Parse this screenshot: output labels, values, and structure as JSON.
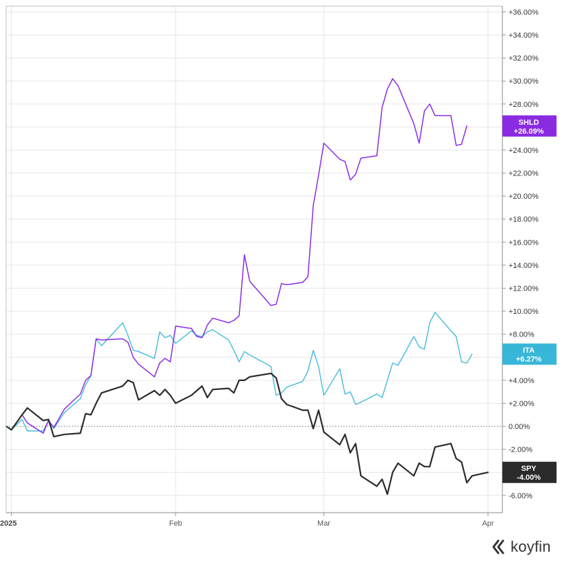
{
  "brand": "koyfin",
  "chart_data": {
    "type": "line",
    "ylim": [
      -7.5,
      36.5
    ],
    "y_ticks": [
      36,
      34,
      32,
      30,
      28,
      26,
      24,
      22,
      20,
      18,
      16,
      14,
      12,
      10,
      8,
      6,
      4,
      2,
      0,
      -2,
      -4,
      -6
    ],
    "y_tick_labels": [
      "+36.00%",
      "+34.00%",
      "+32.00%",
      "+30.00%",
      "+28.00%",
      "+26.00%",
      "+24.00%",
      "+22.00%",
      "+20.00%",
      "+18.00%",
      "+16.00%",
      "+14.00%",
      "+12.00%",
      "+10.00%",
      "+8.00%",
      "+6.00%",
      "+4.00%",
      "+2.00%",
      "0.00%",
      "-2.00%",
      "-4.00%",
      "-6.00%"
    ],
    "x_ticks": [
      {
        "date": "2024-12-31",
        "label": "2025",
        "bold": true
      },
      {
        "date": "2025-01-31",
        "label": "Feb",
        "bold": false
      },
      {
        "date": "2025-02-28",
        "label": "Mar",
        "bold": false
      },
      {
        "date": "2025-03-31",
        "label": "Apr",
        "bold": false
      }
    ],
    "zero_line": true,
    "grid": true,
    "series": [
      {
        "name": "SHLD",
        "color": "#8a2be2",
        "end_label": "+26.09%",
        "line_width": 1.5,
        "points": [
          [
            "2024-12-30",
            0.0
          ],
          [
            "2024-12-31",
            -0.3
          ],
          [
            "2025-01-02",
            1.0
          ],
          [
            "2025-01-03",
            0.3
          ],
          [
            "2025-01-06",
            -0.6
          ],
          [
            "2025-01-07",
            0.5
          ],
          [
            "2025-01-08",
            -0.1
          ],
          [
            "2025-01-10",
            1.5
          ],
          [
            "2025-01-13",
            2.8
          ],
          [
            "2025-01-14",
            4.0
          ],
          [
            "2025-01-15",
            4.4
          ],
          [
            "2025-01-16",
            7.6
          ],
          [
            "2025-01-17",
            7.5
          ],
          [
            "2025-01-21",
            7.6
          ],
          [
            "2025-01-22",
            7.3
          ],
          [
            "2025-01-23",
            6.0
          ],
          [
            "2025-01-24",
            5.4
          ],
          [
            "2025-01-27",
            4.3
          ],
          [
            "2025-01-28",
            5.5
          ],
          [
            "2025-01-29",
            5.9
          ],
          [
            "2025-01-30",
            5.6
          ],
          [
            "2025-01-31",
            8.7
          ],
          [
            "2025-02-03",
            8.5
          ],
          [
            "2025-02-04",
            7.8
          ],
          [
            "2025-02-05",
            7.7
          ],
          [
            "2025-02-06",
            8.8
          ],
          [
            "2025-02-07",
            9.4
          ],
          [
            "2025-02-10",
            9.0
          ],
          [
            "2025-02-11",
            9.2
          ],
          [
            "2025-02-12",
            9.6
          ],
          [
            "2025-02-13",
            14.9
          ],
          [
            "2025-02-14",
            12.6
          ],
          [
            "2025-02-18",
            10.5
          ],
          [
            "2025-02-19",
            10.6
          ],
          [
            "2025-02-20",
            12.4
          ],
          [
            "2025-02-21",
            12.3
          ],
          [
            "2025-02-24",
            12.5
          ],
          [
            "2025-02-25",
            13.0
          ],
          [
            "2025-02-26",
            19.2
          ],
          [
            "2025-02-27",
            21.8
          ],
          [
            "2025-02-28",
            24.6
          ],
          [
            "2025-03-03",
            23.2
          ],
          [
            "2025-03-04",
            23.0
          ],
          [
            "2025-03-05",
            21.4
          ],
          [
            "2025-03-06",
            21.9
          ],
          [
            "2025-03-07",
            23.3
          ],
          [
            "2025-03-10",
            23.5
          ],
          [
            "2025-03-11",
            27.7
          ],
          [
            "2025-03-12",
            29.3
          ],
          [
            "2025-03-13",
            30.2
          ],
          [
            "2025-03-14",
            29.6
          ],
          [
            "2025-03-17",
            26.3
          ],
          [
            "2025-03-18",
            24.6
          ],
          [
            "2025-03-19",
            27.4
          ],
          [
            "2025-03-20",
            28.0
          ],
          [
            "2025-03-21",
            27.0
          ],
          [
            "2025-03-24",
            27.0
          ],
          [
            "2025-03-25",
            24.4
          ],
          [
            "2025-03-26",
            24.5
          ],
          [
            "2025-03-27",
            26.09
          ]
        ]
      },
      {
        "name": "ITA",
        "color": "#38b6d8",
        "end_label": "+6.27%",
        "line_width": 1.3,
        "points": [
          [
            "2024-12-30",
            0.0
          ],
          [
            "2024-12-31",
            -0.3
          ],
          [
            "2025-01-02",
            0.6
          ],
          [
            "2025-01-03",
            -0.4
          ],
          [
            "2025-01-06",
            -0.4
          ],
          [
            "2025-01-07",
            0.5
          ],
          [
            "2025-01-08",
            -0.2
          ],
          [
            "2025-01-10",
            1.2
          ],
          [
            "2025-01-13",
            2.4
          ],
          [
            "2025-01-14",
            3.6
          ],
          [
            "2025-01-15",
            4.4
          ],
          [
            "2025-01-16",
            7.6
          ],
          [
            "2025-01-17",
            7.0
          ],
          [
            "2025-01-21",
            9.0
          ],
          [
            "2025-01-22",
            7.9
          ],
          [
            "2025-01-23",
            6.6
          ],
          [
            "2025-01-24",
            6.5
          ],
          [
            "2025-01-27",
            5.9
          ],
          [
            "2025-01-28",
            8.2
          ],
          [
            "2025-01-29",
            7.7
          ],
          [
            "2025-01-30",
            7.9
          ],
          [
            "2025-01-31",
            7.2
          ],
          [
            "2025-02-03",
            8.3
          ],
          [
            "2025-02-04",
            7.9
          ],
          [
            "2025-02-05",
            7.8
          ],
          [
            "2025-02-06",
            8.2
          ],
          [
            "2025-02-07",
            8.4
          ],
          [
            "2025-02-10",
            7.5
          ],
          [
            "2025-02-11",
            6.6
          ],
          [
            "2025-02-12",
            5.6
          ],
          [
            "2025-02-13",
            6.5
          ],
          [
            "2025-02-14",
            6.2
          ],
          [
            "2025-02-18",
            5.2
          ],
          [
            "2025-02-19",
            2.7
          ],
          [
            "2025-02-20",
            2.9
          ],
          [
            "2025-02-21",
            3.4
          ],
          [
            "2025-02-24",
            3.9
          ],
          [
            "2025-02-25",
            4.8
          ],
          [
            "2025-02-26",
            6.6
          ],
          [
            "2025-02-27",
            5.2
          ],
          [
            "2025-02-28",
            2.7
          ],
          [
            "2025-03-03",
            5.0
          ],
          [
            "2025-03-04",
            2.8
          ],
          [
            "2025-03-05",
            3.0
          ],
          [
            "2025-03-06",
            1.9
          ],
          [
            "2025-03-07",
            2.1
          ],
          [
            "2025-03-10",
            2.8
          ],
          [
            "2025-03-11",
            2.5
          ],
          [
            "2025-03-12",
            4.0
          ],
          [
            "2025-03-13",
            5.5
          ],
          [
            "2025-03-14",
            5.3
          ],
          [
            "2025-03-17",
            7.8
          ],
          [
            "2025-03-18",
            6.9
          ],
          [
            "2025-03-19",
            6.7
          ],
          [
            "2025-03-20",
            9.0
          ],
          [
            "2025-03-21",
            9.9
          ],
          [
            "2025-03-24",
            8.3
          ],
          [
            "2025-03-25",
            7.8
          ],
          [
            "2025-03-26",
            5.6
          ],
          [
            "2025-03-27",
            5.5
          ],
          [
            "2025-03-28",
            6.27
          ]
        ]
      },
      {
        "name": "SPY",
        "color": "#2b2b2b",
        "end_label": "-4.00%",
        "line_width": 2.2,
        "points": [
          [
            "2024-12-30",
            0.0
          ],
          [
            "2024-12-31",
            -0.3
          ],
          [
            "2025-01-02",
            1.0
          ],
          [
            "2025-01-03",
            1.6
          ],
          [
            "2025-01-06",
            0.5
          ],
          [
            "2025-01-07",
            0.6
          ],
          [
            "2025-01-08",
            -0.9
          ],
          [
            "2025-01-10",
            -0.7
          ],
          [
            "2025-01-13",
            -0.6
          ],
          [
            "2025-01-14",
            1.1
          ],
          [
            "2025-01-15",
            1.0
          ],
          [
            "2025-01-16",
            2.0
          ],
          [
            "2025-01-17",
            2.9
          ],
          [
            "2025-01-21",
            3.5
          ],
          [
            "2025-01-22",
            4.0
          ],
          [
            "2025-01-23",
            3.8
          ],
          [
            "2025-01-24",
            2.3
          ],
          [
            "2025-01-27",
            3.1
          ],
          [
            "2025-01-28",
            2.7
          ],
          [
            "2025-01-29",
            3.2
          ],
          [
            "2025-01-30",
            2.7
          ],
          [
            "2025-01-31",
            2.0
          ],
          [
            "2025-02-03",
            2.7
          ],
          [
            "2025-02-04",
            3.1
          ],
          [
            "2025-02-05",
            3.5
          ],
          [
            "2025-02-06",
            2.5
          ],
          [
            "2025-02-07",
            3.2
          ],
          [
            "2025-02-10",
            3.3
          ],
          [
            "2025-02-11",
            2.9
          ],
          [
            "2025-02-12",
            4.0
          ],
          [
            "2025-02-13",
            4.0
          ],
          [
            "2025-02-14",
            4.3
          ],
          [
            "2025-02-18",
            4.6
          ],
          [
            "2025-02-19",
            4.2
          ],
          [
            "2025-02-20",
            2.4
          ],
          [
            "2025-02-21",
            1.9
          ],
          [
            "2025-02-24",
            1.4
          ],
          [
            "2025-02-25",
            1.4
          ],
          [
            "2025-02-26",
            -0.2
          ],
          [
            "2025-02-27",
            1.4
          ],
          [
            "2025-02-28",
            -0.5
          ],
          [
            "2025-03-03",
            -1.6
          ],
          [
            "2025-03-04",
            -0.7
          ],
          [
            "2025-03-05",
            -2.3
          ],
          [
            "2025-03-06",
            -1.5
          ],
          [
            "2025-03-07",
            -4.3
          ],
          [
            "2025-03-10",
            -5.2
          ],
          [
            "2025-03-11",
            -4.6
          ],
          [
            "2025-03-12",
            -5.9
          ],
          [
            "2025-03-13",
            -4.0
          ],
          [
            "2025-03-14",
            -3.2
          ],
          [
            "2025-03-17",
            -4.3
          ],
          [
            "2025-03-18",
            -3.2
          ],
          [
            "2025-03-19",
            -3.5
          ],
          [
            "2025-03-20",
            -3.5
          ],
          [
            "2025-03-21",
            -1.8
          ],
          [
            "2025-03-24",
            -1.5
          ],
          [
            "2025-03-25",
            -2.8
          ],
          [
            "2025-03-26",
            -3.1
          ],
          [
            "2025-03-27",
            -4.9
          ],
          [
            "2025-03-28",
            -4.3
          ],
          [
            "2025-03-31",
            -4.0
          ]
        ]
      }
    ]
  }
}
